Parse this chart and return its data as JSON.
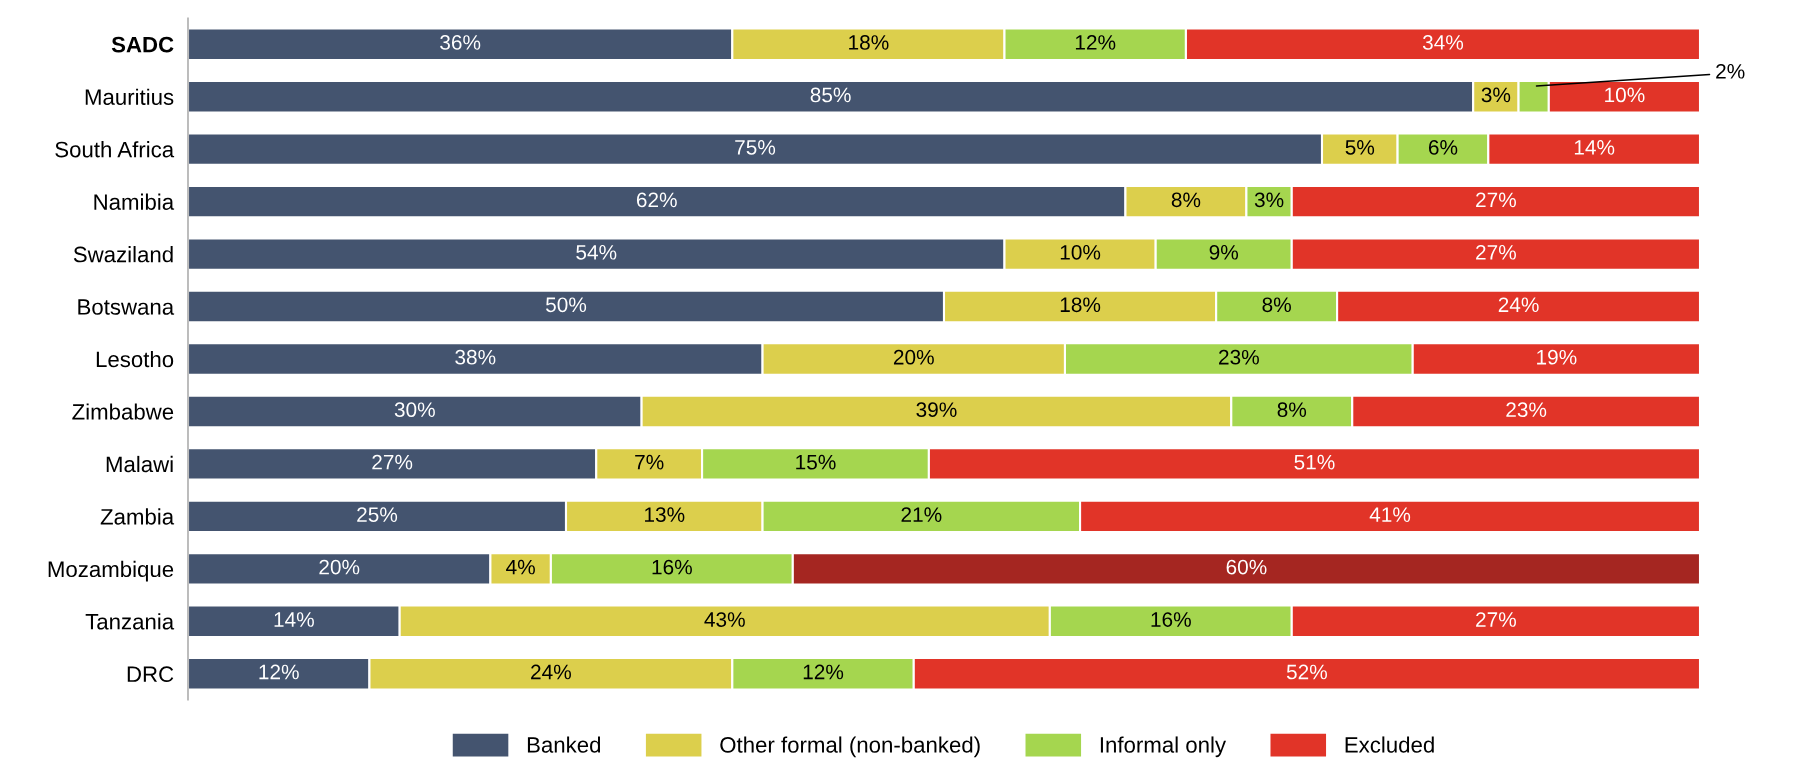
{
  "chart_data": {
    "type": "bar",
    "orientation": "horizontal",
    "stacked": true,
    "legend": "bottom",
    "grid": false,
    "categories": [
      "SADC",
      "Mauritius",
      "South Africa",
      "Namibia",
      "Swaziland",
      "Botswana",
      "Lesotho",
      "Zimbabwe",
      "Malawi",
      "Zambia",
      "Mozambique",
      "Tanzania",
      "DRC"
    ],
    "series": [
      {
        "name": "Banked",
        "color": "#44546f",
        "values": [
          36,
          85,
          75,
          62,
          54,
          50,
          38,
          30,
          27,
          25,
          20,
          14,
          12
        ],
        "value_labels": [
          "36%",
          "85%",
          "75%",
          "62%",
          "54%",
          "50%",
          "38%",
          "30%",
          "27%",
          "25%",
          "20%",
          "14%",
          "12%"
        ]
      },
      {
        "name": "Other formal (non-banked)",
        "color": "#dccf4c",
        "values": [
          18,
          3,
          5,
          8,
          10,
          18,
          20,
          39,
          7,
          13,
          4,
          43,
          24
        ],
        "value_labels": [
          "18%",
          "3%",
          "5%",
          "8%",
          "10%",
          "18%",
          "20%",
          "39%",
          "7%",
          "13%",
          "4%",
          "43%",
          "24%"
        ]
      },
      {
        "name": "Informal only",
        "color": "#a5d64f",
        "values": [
          12,
          2,
          6,
          3,
          9,
          8,
          23,
          8,
          15,
          21,
          16,
          16,
          12
        ],
        "value_labels": [
          "12%",
          "2%",
          "6%",
          "3%",
          "9%",
          "8%",
          "23%",
          "8%",
          "15%",
          "21%",
          "16%",
          "16%",
          "12%"
        ]
      },
      {
        "name": "Excluded",
        "color": "#e13428",
        "colors": [
          "#e13428",
          "#e13428",
          "#e13428",
          "#e13428",
          "#e13428",
          "#e13428",
          "#e13428",
          "#e13428",
          "#e13428",
          "#e13428",
          "#a52621",
          "#e13428",
          "#e13428"
        ],
        "values": [
          34,
          10,
          14,
          27,
          27,
          24,
          19,
          23,
          51,
          41,
          60,
          27,
          52
        ],
        "value_labels": [
          "34%",
          "10%",
          "14%",
          "27%",
          "27%",
          "24%",
          "19%",
          "23%",
          "51%",
          "41%",
          "60%",
          "27%",
          "52%"
        ]
      }
    ]
  }
}
